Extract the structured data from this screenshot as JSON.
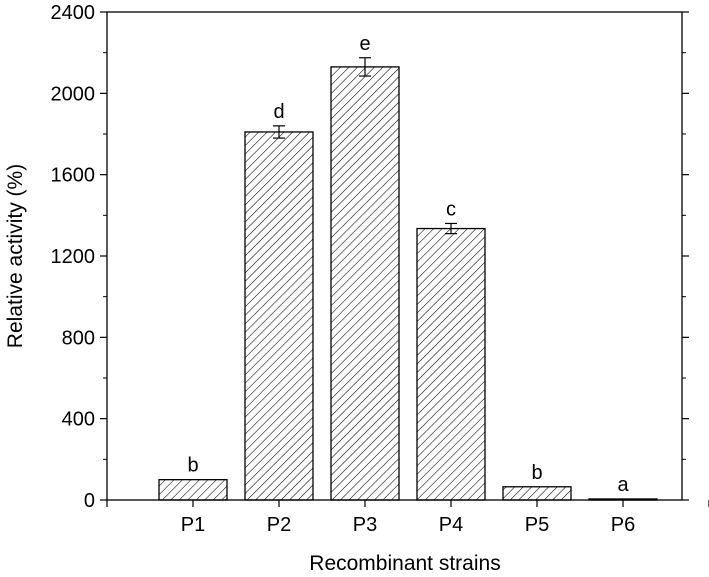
{
  "chart_data": {
    "type": "bar",
    "xlabel": "Recombinant strains",
    "ylabel": "Relative activity (%)",
    "ylim": [
      0,
      2400
    ],
    "yticks": [
      0,
      400,
      800,
      1200,
      1600,
      2000,
      2400
    ],
    "yticks_labels": [
      "0",
      "400",
      "800",
      "1200",
      "1600",
      "2000",
      "2400"
    ],
    "categories": [
      "P1",
      "P2",
      "P3",
      "P4",
      "P5",
      "P6"
    ],
    "values": [
      100,
      1810,
      2130,
      1335,
      65,
      5
    ],
    "errors": [
      0,
      30,
      45,
      25,
      0,
      0
    ],
    "significance_labels": [
      "b",
      "d",
      "e",
      "c",
      "b",
      "a"
    ],
    "bar_fill": "diagonal-hatch",
    "grid": false,
    "colors": {
      "bar_stroke": "#000000",
      "hatch": "#000000",
      "background": "#ffffff"
    }
  }
}
